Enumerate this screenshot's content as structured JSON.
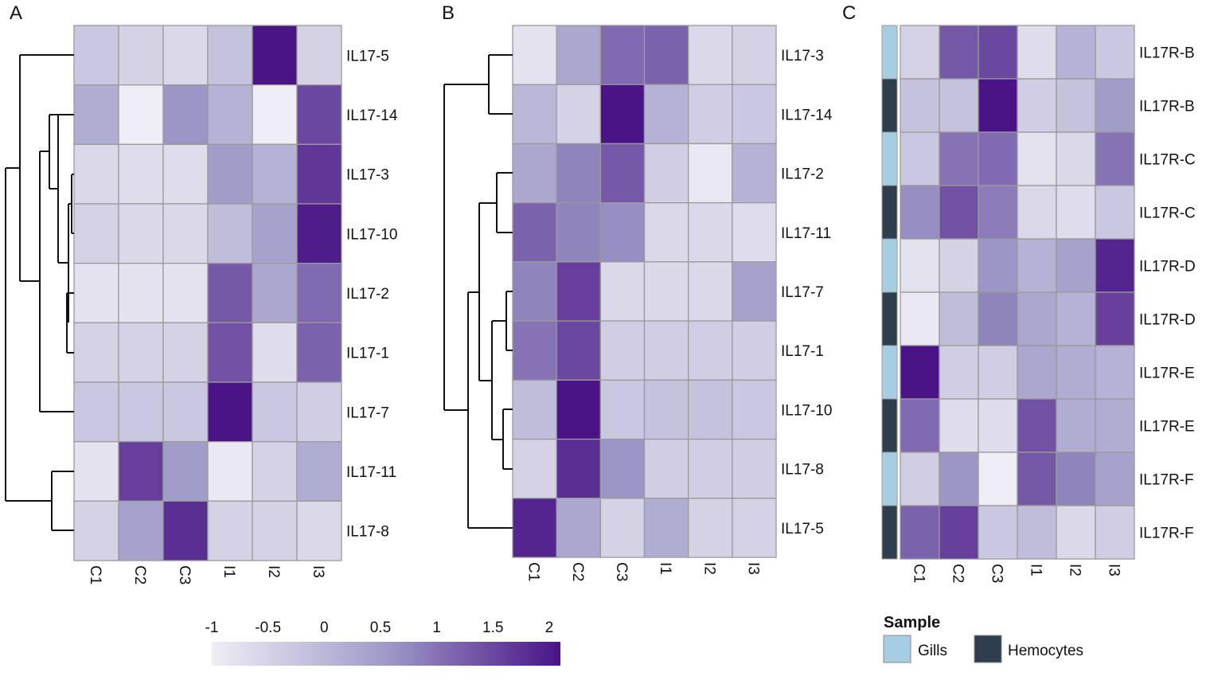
{
  "colors": {
    "low": "#efedf5",
    "mid": "#9e9ac8",
    "high": "#4a1486",
    "grid": "#9a9a9a",
    "gills": "#a6cee3",
    "hemocytes": "#2f3e4e"
  },
  "colorbar": {
    "min": -1,
    "max": 2.1,
    "ticks": [
      {
        "value": -1,
        "label": "-1"
      },
      {
        "value": -0.5,
        "label": "-0.5"
      },
      {
        "value": 0,
        "label": "0"
      },
      {
        "value": 0.5,
        "label": "0.5"
      },
      {
        "value": 1,
        "label": "1"
      },
      {
        "value": 1.5,
        "label": "1.5"
      },
      {
        "value": 2,
        "label": "2"
      }
    ]
  },
  "sample_legend": {
    "title": "Sample",
    "entries": [
      {
        "key": "gills",
        "label": "Gills"
      },
      {
        "key": "hemocytes",
        "label": "Hemocytes"
      }
    ]
  },
  "chart_data": [
    {
      "type": "heatmap",
      "panel": "A",
      "columns": [
        "C1",
        "C2",
        "C3",
        "I1",
        "I2",
        "I3"
      ],
      "rows": [
        "IL17-5",
        "IL17-14",
        "IL17-3",
        "IL17-10",
        "IL17-2",
        "IL17-1",
        "IL17-7",
        "IL17-11",
        "IL17-8"
      ],
      "values": [
        [
          -0.3,
          -0.5,
          -0.6,
          -0.2,
          2.1,
          -0.5
        ],
        [
          0.2,
          -1.0,
          0.6,
          0.1,
          -1.0,
          1.5
        ],
        [
          -0.6,
          -0.7,
          -0.7,
          0.5,
          0.1,
          1.7
        ],
        [
          -0.5,
          -0.6,
          -0.6,
          -0.1,
          0.4,
          2.0
        ],
        [
          -0.8,
          -0.8,
          -0.8,
          1.3,
          0.3,
          1.1
        ],
        [
          -0.5,
          -0.5,
          -0.5,
          1.4,
          -0.7,
          1.2
        ],
        [
          -0.3,
          -0.3,
          -0.3,
          2.1,
          -0.3,
          -0.4
        ],
        [
          -0.8,
          1.6,
          0.5,
          -0.9,
          -0.5,
          0.2
        ],
        [
          -0.5,
          0.4,
          1.8,
          -0.5,
          -0.5,
          -0.6
        ]
      ],
      "dendrogram": "A"
    },
    {
      "type": "heatmap",
      "panel": "B",
      "columns": [
        "C1",
        "C2",
        "C3",
        "I1",
        "I2",
        "I3"
      ],
      "rows": [
        "IL17-3",
        "IL17-14",
        "IL17-2",
        "IL17-11",
        "IL17-7",
        "IL17-1",
        "IL17-10",
        "IL17-8",
        "IL17-5"
      ],
      "values": [
        [
          -0.8,
          0.3,
          1.1,
          1.2,
          -0.6,
          -0.5
        ],
        [
          0.0,
          -0.5,
          2.1,
          0.1,
          -0.4,
          -0.3
        ],
        [
          0.3,
          0.8,
          1.3,
          -0.4,
          -0.9,
          0.1
        ],
        [
          1.2,
          0.8,
          0.7,
          -0.6,
          -0.6,
          -0.7
        ],
        [
          0.8,
          1.6,
          -0.6,
          -0.6,
          -0.6,
          0.4
        ],
        [
          1.0,
          1.5,
          -0.4,
          -0.4,
          -0.4,
          -0.4
        ],
        [
          -0.1,
          2.1,
          -0.3,
          -0.2,
          -0.2,
          -0.3
        ],
        [
          -0.5,
          1.8,
          0.6,
          -0.4,
          -0.4,
          -0.4
        ],
        [
          1.9,
          0.3,
          -0.5,
          0.2,
          -0.5,
          -0.5
        ]
      ],
      "dendrogram": "B"
    },
    {
      "type": "heatmap",
      "panel": "C",
      "columns": [
        "C1",
        "C2",
        "C3",
        "I1",
        "I2",
        "I3"
      ],
      "rows": [
        "IL17R-B",
        "IL17R-B",
        "IL17R-C",
        "IL17R-C",
        "IL17R-D",
        "IL17R-D",
        "IL17R-E",
        "IL17R-E",
        "IL17R-F",
        "IL17R-F"
      ],
      "sample": [
        "gills",
        "hemocytes",
        "gills",
        "hemocytes",
        "gills",
        "hemocytes",
        "gills",
        "hemocytes",
        "gills",
        "hemocytes"
      ],
      "values": [
        [
          -0.5,
          1.3,
          1.5,
          -0.7,
          0.1,
          -0.3
        ],
        [
          -0.2,
          -0.2,
          2.1,
          -0.4,
          -0.2,
          0.5
        ],
        [
          -0.3,
          1.0,
          1.1,
          -0.8,
          -0.6,
          1.0
        ],
        [
          0.7,
          1.4,
          0.9,
          -0.6,
          -0.7,
          -0.3
        ],
        [
          -0.8,
          -0.5,
          0.6,
          0.1,
          0.4,
          1.9
        ],
        [
          -0.9,
          -0.1,
          0.8,
          0.3,
          0.1,
          1.6
        ],
        [
          2.1,
          -0.4,
          -0.4,
          0.3,
          0.2,
          0.1
        ],
        [
          1.1,
          -0.7,
          -0.7,
          1.4,
          0.2,
          0.2
        ],
        [
          -0.4,
          0.6,
          -1.0,
          1.3,
          0.8,
          0.4
        ],
        [
          1.2,
          1.6,
          -0.3,
          -0.1,
          -0.6,
          -0.4
        ]
      ],
      "dendrogram": "none"
    }
  ]
}
